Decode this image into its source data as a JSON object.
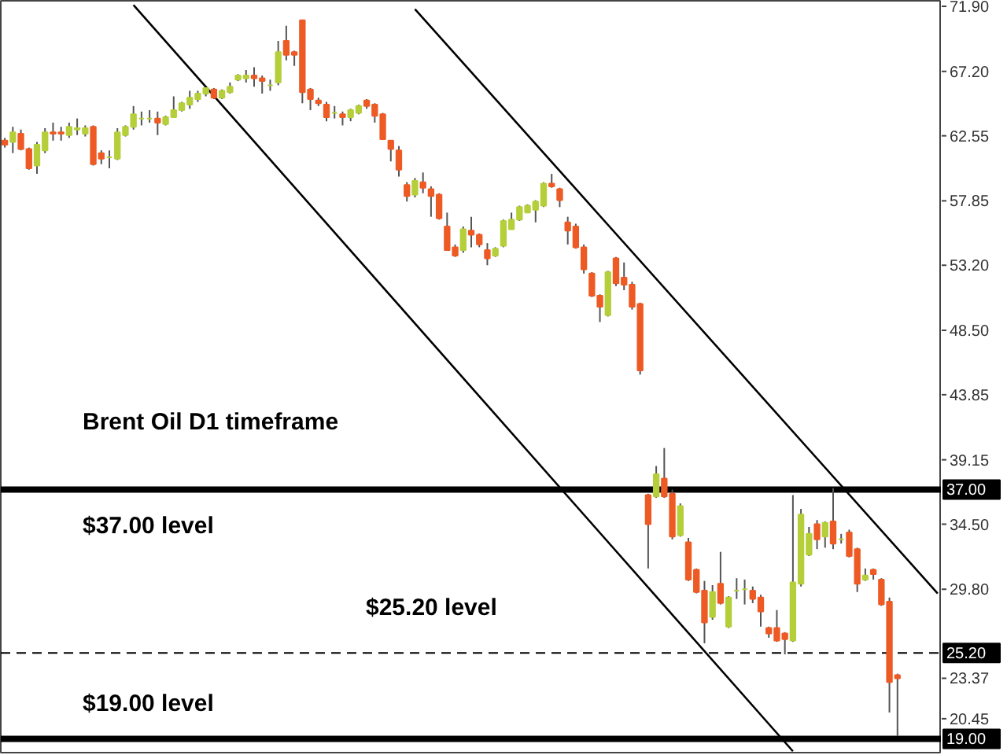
{
  "chart_data": {
    "type": "candlestick",
    "categories": [
      null,
      null,
      null,
      null,
      null,
      null,
      null,
      null,
      null,
      null,
      null,
      null,
      null,
      null,
      null,
      null,
      null,
      null,
      null,
      null,
      null,
      null,
      null,
      null,
      null,
      null,
      null,
      null,
      null,
      null,
      null,
      null,
      null,
      null,
      null,
      null,
      null,
      null,
      null,
      null,
      null,
      null,
      null,
      null,
      null,
      null,
      null,
      null,
      null,
      null,
      null,
      null,
      null,
      null,
      null,
      null,
      null,
      null,
      null,
      null,
      null,
      null,
      null,
      null,
      null,
      null,
      null,
      null,
      null,
      null,
      null,
      null,
      null,
      null,
      null,
      null,
      null,
      null,
      null,
      null,
      null,
      null,
      null,
      null,
      null,
      null,
      null,
      null,
      null,
      null,
      null,
      null,
      null,
      null,
      null,
      null,
      null,
      null,
      null,
      null,
      null,
      null,
      null,
      null,
      null,
      null,
      null,
      null,
      null,
      null,
      null,
      null,
      null,
      null,
      null,
      null,
      null
    ],
    "ohlc": [
      [
        62.2,
        62.4,
        61.7,
        61.9
      ],
      [
        62.1,
        63.2,
        61.3,
        62.8
      ],
      [
        62.7,
        63.0,
        61.5,
        61.6
      ],
      [
        61.6,
        61.7,
        60.1,
        60.2
      ],
      [
        60.4,
        62.1,
        59.8,
        61.9
      ],
      [
        61.5,
        63.1,
        61.3,
        62.8
      ],
      [
        62.8,
        63.5,
        62.2,
        62.7
      ],
      [
        62.8,
        63.2,
        62.2,
        62.7
      ],
      [
        62.6,
        63.5,
        62.4,
        63.2
      ],
      [
        63.0,
        63.8,
        62.6,
        63.1
      ],
      [
        62.7,
        63.3,
        62.5,
        63.1
      ],
      [
        63.2,
        63.3,
        60.4,
        60.5
      ],
      [
        61.3,
        61.5,
        60.5,
        60.9
      ],
      [
        61.0,
        61.5,
        60.2,
        61.0
      ],
      [
        60.9,
        63.1,
        60.8,
        62.8
      ],
      [
        62.6,
        63.3,
        62.5,
        63.2
      ],
      [
        63.2,
        64.7,
        63.0,
        64.1
      ],
      [
        63.8,
        64.3,
        63.3,
        63.8
      ],
      [
        63.8,
        64.4,
        63.5,
        63.8
      ],
      [
        63.8,
        64.3,
        62.6,
        63.5
      ],
      [
        63.4,
        64.0,
        63.3,
        63.9
      ],
      [
        63.9,
        65.4,
        63.9,
        64.4
      ],
      [
        64.4,
        65.0,
        64.3,
        64.9
      ],
      [
        64.8,
        65.8,
        64.5,
        65.3
      ],
      [
        65.2,
        65.8,
        65.0,
        65.6
      ],
      [
        65.6,
        66.0,
        65.4,
        66.0
      ],
      [
        65.9,
        66.0,
        65.2,
        65.3
      ],
      [
        65.3,
        65.9,
        65.2,
        65.8
      ],
      [
        65.7,
        66.4,
        65.6,
        66.1
      ],
      [
        66.6,
        67.0,
        66.5,
        66.9
      ],
      [
        66.7,
        67.3,
        66.4,
        66.9
      ],
      [
        66.9,
        67.5,
        66.1,
        66.7
      ],
      [
        66.7,
        66.9,
        65.6,
        66.5
      ],
      [
        66.2,
        66.6,
        65.8,
        66.2
      ],
      [
        66.4,
        69.4,
        66.2,
        68.6
      ],
      [
        69.4,
        70.5,
        68.0,
        68.4
      ],
      [
        68.6,
        68.7,
        67.6,
        68.4
      ],
      [
        70.9,
        70.9,
        64.9,
        65.7
      ],
      [
        65.9,
        66.0,
        64.4,
        65.2
      ],
      [
        65.1,
        65.3,
        64.7,
        64.9
      ],
      [
        64.8,
        65.0,
        63.6,
        63.9
      ],
      [
        64.2,
        64.7,
        63.8,
        64.2
      ],
      [
        64.1,
        64.3,
        63.3,
        63.9
      ],
      [
        63.9,
        64.5,
        63.6,
        64.4
      ],
      [
        64.2,
        64.8,
        64.1,
        64.7
      ],
      [
        65.1,
        65.2,
        64.5,
        64.7
      ],
      [
        64.8,
        64.9,
        63.5,
        64.0
      ],
      [
        64.1,
        64.2,
        62.3,
        62.3
      ],
      [
        62.2,
        62.2,
        60.7,
        61.6
      ],
      [
        61.5,
        61.8,
        59.6,
        60.1
      ],
      [
        59.0,
        59.2,
        57.8,
        58.2
      ],
      [
        58.3,
        59.5,
        58.1,
        59.3
      ],
      [
        59.2,
        59.9,
        58.4,
        58.8
      ],
      [
        58.7,
        58.9,
        56.7,
        58.2
      ],
      [
        58.3,
        58.4,
        56.5,
        56.6
      ],
      [
        56.0,
        57.0,
        54.3,
        54.3
      ],
      [
        54.5,
        54.7,
        53.8,
        53.9
      ],
      [
        54.3,
        56.0,
        54.1,
        55.8
      ],
      [
        55.7,
        56.7,
        54.5,
        55.4
      ],
      [
        55.4,
        55.5,
        54.5,
        54.7
      ],
      [
        54.3,
        54.8,
        53.2,
        53.7
      ],
      [
        53.9,
        54.5,
        53.8,
        54.4
      ],
      [
        54.6,
        56.5,
        54.5,
        56.4
      ],
      [
        55.8,
        57.0,
        55.8,
        56.5
      ],
      [
        56.5,
        57.5,
        56.4,
        57.4
      ],
      [
        57.0,
        57.6,
        57.0,
        57.5
      ],
      [
        57.2,
        57.9,
        56.3,
        57.8
      ],
      [
        57.5,
        59.2,
        57.4,
        59.1
      ],
      [
        59.1,
        59.8,
        58.8,
        58.9
      ],
      [
        58.7,
        58.8,
        57.4,
        57.9
      ],
      [
        56.3,
        56.7,
        54.7,
        55.7
      ],
      [
        56.0,
        56.2,
        54.4,
        54.5
      ],
      [
        54.5,
        54.7,
        52.6,
        52.9
      ],
      [
        52.6,
        52.7,
        50.9,
        51.0
      ],
      [
        51.0,
        51.1,
        49.1,
        50.2
      ],
      [
        49.6,
        52.8,
        49.5,
        52.7
      ],
      [
        53.7,
        53.8,
        51.7,
        51.9
      ],
      [
        52.3,
        53.4,
        51.4,
        51.8
      ],
      [
        51.8,
        52.0,
        50.0,
        50.2
      ],
      [
        50.4,
        50.5,
        45.3,
        45.6
      ],
      [
        36.6,
        36.7,
        31.3,
        34.5
      ],
      [
        36.5,
        38.7,
        36.4,
        38.1
      ],
      [
        37.8,
        40.0,
        36.4,
        36.5
      ],
      [
        36.7,
        37.0,
        33.4,
        33.6
      ],
      [
        33.7,
        36.0,
        33.6,
        35.8
      ],
      [
        33.2,
        33.5,
        30.4,
        30.5
      ],
      [
        31.2,
        31.3,
        29.5,
        29.6
      ],
      [
        29.7,
        30.4,
        25.9,
        27.4
      ],
      [
        27.8,
        30.1,
        27.6,
        29.6
      ],
      [
        30.2,
        32.5,
        28.7,
        28.8
      ],
      [
        27.1,
        29.3,
        27.0,
        29.2
      ],
      [
        29.7,
        30.6,
        29.1,
        29.7
      ],
      [
        29.8,
        30.5,
        28.7,
        29.8
      ],
      [
        29.7,
        30.0,
        28.8,
        29.1
      ],
      [
        29.2,
        29.4,
        27.1,
        28.2
      ],
      [
        27.0,
        27.1,
        26.3,
        26.6
      ],
      [
        27.0,
        28.3,
        26.0,
        26.1
      ],
      [
        26.6,
        26.7,
        25.1,
        26.2
      ],
      [
        26.1,
        36.6,
        26.0,
        30.3
      ],
      [
        30.2,
        35.6,
        30.0,
        35.2
      ],
      [
        32.3,
        34.3,
        32.2,
        33.8
      ],
      [
        34.5,
        34.8,
        32.7,
        33.4
      ],
      [
        33.6,
        34.7,
        32.8,
        34.6
      ],
      [
        34.7,
        37.1,
        32.7,
        33.1
      ],
      [
        33.4,
        33.8,
        33.1,
        33.4
      ],
      [
        33.9,
        34.1,
        32.1,
        32.2
      ],
      [
        32.7,
        32.8,
        29.6,
        30.2
      ],
      [
        30.5,
        31.3,
        30.4,
        30.8
      ],
      [
        31.2,
        31.3,
        30.5,
        30.9
      ],
      [
        30.5,
        30.6,
        28.6,
        28.7
      ],
      [
        28.9,
        29.2,
        20.9,
        23.1
      ],
      [
        23.6,
        23.7,
        19.2,
        23.37
      ],
      null,
      null,
      null,
      null,
      null
    ],
    "colors": [
      "#ee5a24",
      "#b5cf3a",
      "#ee5a24",
      "#ee5a24",
      "#b5cf3a",
      "#b5cf3a",
      "#ee5a24",
      "#ee5a24",
      "#b5cf3a",
      "#b5cf3a",
      "#b5cf3a",
      "#ee5a24",
      "#ee5a24",
      "#b5cf3a",
      "#b5cf3a",
      "#b5cf3a",
      "#b5cf3a",
      "#b5cf3a",
      "#b5cf3a",
      "#ee5a24",
      "#b5cf3a",
      "#b5cf3a",
      "#b5cf3a",
      "#b5cf3a",
      "#b5cf3a",
      "#b5cf3a",
      "#ee5a24",
      "#b5cf3a",
      "#b5cf3a",
      "#b5cf3a",
      "#b5cf3a",
      "#ee5a24",
      "#ee5a24",
      "#b5cf3a",
      "#b5cf3a",
      "#ee5a24",
      "#ee5a24",
      "#ee5a24",
      "#ee5a24",
      "#ee5a24",
      "#ee5a24",
      "#b5cf3a",
      "#ee5a24",
      "#b5cf3a",
      "#b5cf3a",
      "#ee5a24",
      "#ee5a24",
      "#ee5a24",
      "#ee5a24",
      "#ee5a24",
      "#ee5a24",
      "#b5cf3a",
      "#ee5a24",
      "#ee5a24",
      "#ee5a24",
      "#ee5a24",
      "#ee5a24",
      "#b5cf3a",
      "#ee5a24",
      "#ee5a24",
      "#ee5a24",
      "#b5cf3a",
      "#b5cf3a",
      "#b5cf3a",
      "#b5cf3a",
      "#b5cf3a",
      "#b5cf3a",
      "#b5cf3a",
      "#ee5a24",
      "#ee5a24",
      "#ee5a24",
      "#ee5a24",
      "#ee5a24",
      "#ee5a24",
      "#ee5a24",
      "#b5cf3a",
      "#ee5a24",
      "#ee5a24",
      "#ee5a24",
      "#ee5a24",
      "#ee5a24",
      "#b5cf3a",
      "#ee5a24",
      "#ee5a24",
      "#b5cf3a",
      "#ee5a24",
      "#ee5a24",
      "#ee5a24",
      "#b5cf3a",
      "#ee5a24",
      "#b5cf3a",
      "#b5cf3a",
      "#b5cf3a",
      "#ee5a24",
      "#ee5a24",
      "#ee5a24",
      "#ee5a24",
      "#ee5a24",
      "#b5cf3a",
      "#b5cf3a",
      "#b5cf3a",
      "#ee5a24",
      "#b5cf3a",
      "#ee5a24",
      "#b5cf3a",
      "#ee5a24",
      "#ee5a24",
      "#b5cf3a",
      "#ee5a24",
      "#ee5a24",
      "#ee5a24",
      "#ee5a24",
      null,
      null,
      null,
      null,
      null
    ],
    "series": [
      {
        "type": "line",
        "color": "#000000",
        "values": [
          null,
          null,
          null,
          null,
          null,
          null,
          null,
          null,
          null,
          null,
          null,
          null,
          null,
          null,
          null,
          null,
          72.0,
          null,
          null,
          null,
          null,
          null,
          null,
          null,
          null,
          null,
          null,
          null,
          null,
          null,
          null,
          null,
          null,
          null,
          null,
          null,
          null,
          null,
          null,
          null,
          null,
          null,
          null,
          null,
          null,
          null,
          null,
          null,
          null,
          null,
          null,
          null,
          null,
          null,
          null,
          null,
          null,
          null,
          null,
          null,
          null,
          null,
          null,
          null,
          null,
          null,
          null,
          null,
          null,
          null,
          null,
          null,
          null,
          null,
          null,
          null,
          null,
          null,
          null,
          null,
          null,
          null,
          null,
          null,
          null,
          null,
          null,
          null,
          null,
          null,
          null,
          null,
          null,
          null,
          null,
          null,
          null,
          null,
          18.1,
          null,
          null,
          null,
          null,
          null,
          null,
          null,
          null,
          null,
          null,
          null,
          null,
          null,
          null,
          null,
          null,
          null,
          null
        ]
      },
      {
        "type": "line",
        "color": "#000000",
        "values": [
          null,
          null,
          null,
          null,
          null,
          null,
          null,
          null,
          null,
          null,
          null,
          null,
          null,
          null,
          null,
          null,
          null,
          null,
          null,
          null,
          null,
          null,
          null,
          null,
          null,
          null,
          null,
          null,
          null,
          null,
          null,
          null,
          null,
          null,
          null,
          null,
          null,
          null,
          null,
          null,
          null,
          null,
          null,
          null,
          null,
          null,
          null,
          null,
          null,
          null,
          null,
          71.7,
          null,
          null,
          null,
          null,
          null,
          null,
          null,
          null,
          null,
          null,
          null,
          null,
          null,
          null,
          null,
          null,
          null,
          null,
          null,
          null,
          null,
          null,
          null,
          null,
          null,
          null,
          null,
          null,
          null,
          null,
          null,
          null,
          null,
          null,
          null,
          null,
          null,
          null,
          null,
          null,
          null,
          null,
          null,
          null,
          null,
          null,
          null,
          null,
          null,
          null,
          null,
          null,
          null,
          null,
          null,
          null,
          null,
          null,
          null,
          null,
          null,
          null,
          null,
          null,
          29.5
        ]
      }
    ],
    "ylim": [
      18.0,
      72.3
    ],
    "yticks": [
      {
        "value": 71.9,
        "label": "71.90"
      },
      {
        "value": 67.2,
        "label": "67.20"
      },
      {
        "value": 62.55,
        "label": "62.55"
      },
      {
        "value": 57.85,
        "label": "57.85"
      },
      {
        "value": 53.2,
        "label": "53.20"
      },
      {
        "value": 48.5,
        "label": "48.50"
      },
      {
        "value": 43.85,
        "label": "43.85"
      },
      {
        "value": 39.15,
        "label": "39.15"
      },
      {
        "value": 34.5,
        "label": "34.50"
      },
      {
        "value": 29.8,
        "label": "29.80"
      },
      {
        "value": 23.37,
        "label": "23.37"
      },
      {
        "value": 20.45,
        "label": "20.45"
      }
    ],
    "ref_lines": [
      {
        "axis": "y",
        "value": 37.0,
        "label": "37.00",
        "line_style": "solid",
        "color": "#000000"
      },
      {
        "axis": "y",
        "value": 25.2,
        "label": "25.20",
        "line_style": "dashed",
        "color": "#000000"
      },
      {
        "axis": "y",
        "value": 19.0,
        "label": "19.00",
        "line_style": "solid",
        "color": "#000000"
      }
    ],
    "annotations": [
      "Brent Oil D1 timeframe",
      "$37.00 level",
      "$25.20 level",
      "$19.00 level"
    ],
    "tick_labels": "y",
    "grid": false
  }
}
